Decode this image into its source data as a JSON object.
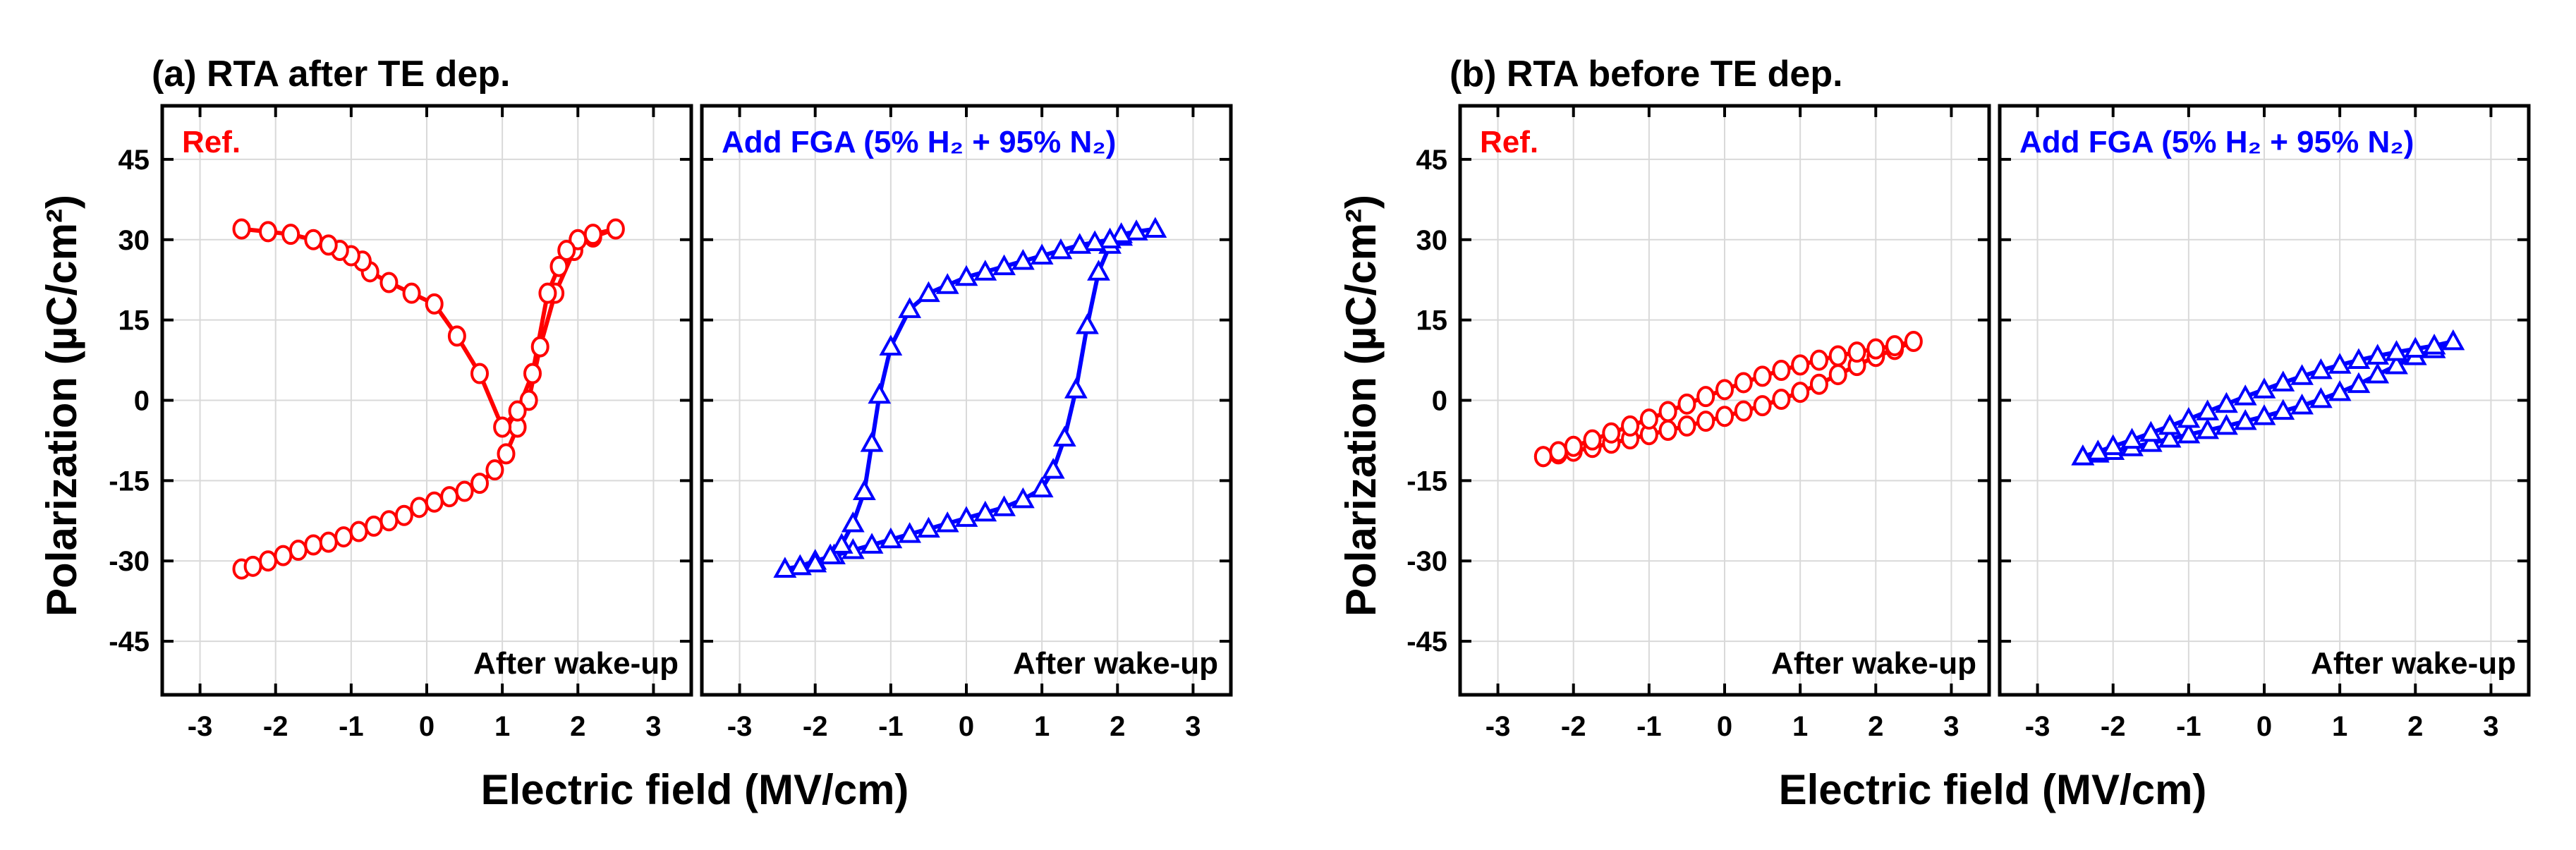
{
  "figure": {
    "panel_a_title": "(a) RTA after TE dep.",
    "panel_b_title": "(b) RTA before TE dep.",
    "ylabel": "Polarization (µC/cm²)",
    "xlabel": "Electric field (MV/cm)",
    "inner_note": "After wake-up",
    "label_ref": "Ref.",
    "label_fga": "Add FGA (5% H₂ + 95% N₂)",
    "colors": {
      "ref": "#ff0000",
      "fga": "#0000ff"
    }
  },
  "chart_data": [
    {
      "type": "line",
      "panel": "(a) RTA after TE dep.",
      "label": "Ref.",
      "marker": "circle",
      "xlim": [
        -3.5,
        3.5
      ],
      "ylim": [
        -55,
        55
      ],
      "xticks": [
        -3,
        -2,
        -1,
        0,
        1,
        2,
        3
      ],
      "yticks": [
        45,
        30,
        15,
        0,
        -15,
        -30,
        -45
      ],
      "grid": true,
      "series": [
        {
          "x": [
            -2.45,
            -2.3,
            -2.1,
            -1.9,
            -1.7,
            -1.5,
            -1.3,
            -1.1,
            -0.9,
            -0.7,
            -0.5,
            -0.3,
            -0.1,
            0.1,
            0.3,
            0.5,
            0.7,
            0.9,
            1.05,
            1.2,
            1.35,
            1.5,
            1.7,
            1.95,
            2.2,
            2.5,
            2.2,
            2.0,
            1.85,
            1.75,
            1.6,
            1.4,
            1.2,
            1.0,
            0.7,
            0.4,
            0.1,
            -0.2,
            -0.5,
            -0.75,
            -0.85,
            -1.0,
            -1.15,
            -1.3,
            -1.5,
            -1.8,
            -2.1,
            -2.45
          ],
          "y": [
            -31.5,
            -31,
            -30,
            -29,
            -28,
            -27,
            -26.5,
            -25.5,
            -24.5,
            -23.5,
            -22.5,
            -21.5,
            -20,
            -19,
            -18,
            -17,
            -15.5,
            -13,
            -10,
            -5,
            0,
            10,
            20,
            28,
            30.5,
            32,
            31,
            30,
            28,
            25,
            20,
            5,
            -2,
            -5,
            5,
            12,
            18,
            20,
            22,
            24,
            26,
            27,
            28,
            29,
            30,
            31,
            31.5,
            32
          ]
        }
      ]
    },
    {
      "type": "line",
      "panel": "(a) RTA after TE dep.",
      "label": "Add FGA (5% H₂ + 95% N₂)",
      "marker": "triangle",
      "xlim": [
        -3.5,
        3.5
      ],
      "ylim": [
        -55,
        55
      ],
      "xticks": [
        -3,
        -2,
        -1,
        0,
        1,
        2,
        3
      ],
      "yticks": [
        45,
        30,
        15,
        0,
        -15,
        -30,
        -45
      ],
      "grid": true,
      "series": [
        {
          "x": [
            -2.4,
            -2.2,
            -2.0,
            -1.75,
            -1.5,
            -1.25,
            -1.0,
            -0.75,
            -0.5,
            -0.25,
            0.0,
            0.25,
            0.5,
            0.75,
            1.0,
            1.15,
            1.3,
            1.45,
            1.6,
            1.75,
            1.9,
            2.05,
            2.25,
            2.5,
            2.25,
            2.05,
            1.9,
            1.7,
            1.5,
            1.25,
            1.0,
            0.75,
            0.5,
            0.25,
            0.0,
            -0.25,
            -0.5,
            -0.75,
            -1.0,
            -1.15,
            -1.25,
            -1.35,
            -1.5,
            -1.65,
            -1.8,
            -2.0,
            -2.2,
            -2.4
          ],
          "y": [
            -31.5,
            -31,
            -30,
            -29,
            -28,
            -27,
            -26,
            -25,
            -24,
            -23,
            -22,
            -21,
            -20,
            -18.5,
            -16.5,
            -13,
            -7,
            2,
            14,
            24,
            29,
            30.5,
            31.5,
            32,
            31.5,
            31,
            30,
            29.5,
            29,
            28,
            27,
            26,
            25,
            24,
            23,
            21.5,
            20,
            17,
            10,
            1,
            -8,
            -17,
            -23,
            -27,
            -29,
            -30.5,
            -31,
            -31.5
          ]
        }
      ]
    },
    {
      "type": "line",
      "panel": "(b) RTA before TE dep.",
      "label": "Ref.",
      "marker": "circle",
      "xlim": [
        -3.5,
        3.5
      ],
      "ylim": [
        -55,
        55
      ],
      "xticks": [
        -3,
        -2,
        -1,
        0,
        1,
        2,
        3
      ],
      "yticks": [
        45,
        30,
        15,
        0,
        -15,
        -30,
        -45
      ],
      "grid": true,
      "series": [
        {
          "x": [
            -2.4,
            -2.2,
            -2.0,
            -1.75,
            -1.5,
            -1.25,
            -1.0,
            -0.75,
            -0.5,
            -0.25,
            0.0,
            0.25,
            0.5,
            0.75,
            1.0,
            1.25,
            1.5,
            1.75,
            2.0,
            2.25,
            2.5,
            2.25,
            2.0,
            1.75,
            1.5,
            1.25,
            1.0,
            0.75,
            0.5,
            0.25,
            0.0,
            -0.25,
            -0.5,
            -0.75,
            -1.0,
            -1.25,
            -1.5,
            -1.75,
            -2.0,
            -2.2,
            -2.4
          ],
          "y": [
            -10.5,
            -10,
            -9.5,
            -8.8,
            -8.0,
            -7.2,
            -6.4,
            -5.6,
            -4.8,
            -3.9,
            -3.0,
            -2.0,
            -1.0,
            0.2,
            1.5,
            3.0,
            4.8,
            6.5,
            8.2,
            9.5,
            11.0,
            10.2,
            9.6,
            9.0,
            8.3,
            7.5,
            6.6,
            5.6,
            4.5,
            3.3,
            2.0,
            0.7,
            -0.7,
            -2.1,
            -3.5,
            -4.8,
            -6.1,
            -7.4,
            -8.6,
            -9.6,
            -10.5
          ]
        }
      ]
    },
    {
      "type": "line",
      "panel": "(b) RTA before TE dep.",
      "label": "Add FGA (5% H₂ + 95% N₂)",
      "marker": "triangle",
      "xlim": [
        -3.5,
        3.5
      ],
      "ylim": [
        -55,
        55
      ],
      "xticks": [
        -3,
        -2,
        -1,
        0,
        1,
        2,
        3
      ],
      "yticks": [
        45,
        30,
        15,
        0,
        -15,
        -30,
        -45
      ],
      "grid": true,
      "series": [
        {
          "x": [
            -2.4,
            -2.2,
            -2.0,
            -1.75,
            -1.5,
            -1.25,
            -1.0,
            -0.75,
            -0.5,
            -0.25,
            0.0,
            0.25,
            0.5,
            0.75,
            1.0,
            1.25,
            1.5,
            1.75,
            2.0,
            2.25,
            2.5,
            2.25,
            2.0,
            1.75,
            1.5,
            1.25,
            1.0,
            0.75,
            0.5,
            0.25,
            0.0,
            -0.25,
            -0.5,
            -0.75,
            -1.0,
            -1.25,
            -1.5,
            -1.75,
            -2.0,
            -2.2,
            -2.4
          ],
          "y": [
            -10.5,
            -10,
            -9.5,
            -8.8,
            -8.0,
            -7.2,
            -6.4,
            -5.6,
            -4.8,
            -3.9,
            -3.0,
            -2.0,
            -1.0,
            0.2,
            1.5,
            3.0,
            4.8,
            6.5,
            8.2,
            9.5,
            11.0,
            10.2,
            9.6,
            9.0,
            8.3,
            7.5,
            6.6,
            5.6,
            4.5,
            3.3,
            2.0,
            0.7,
            -0.7,
            -2.1,
            -3.5,
            -4.8,
            -6.1,
            -7.4,
            -8.6,
            -9.6,
            -10.5
          ]
        }
      ]
    }
  ]
}
